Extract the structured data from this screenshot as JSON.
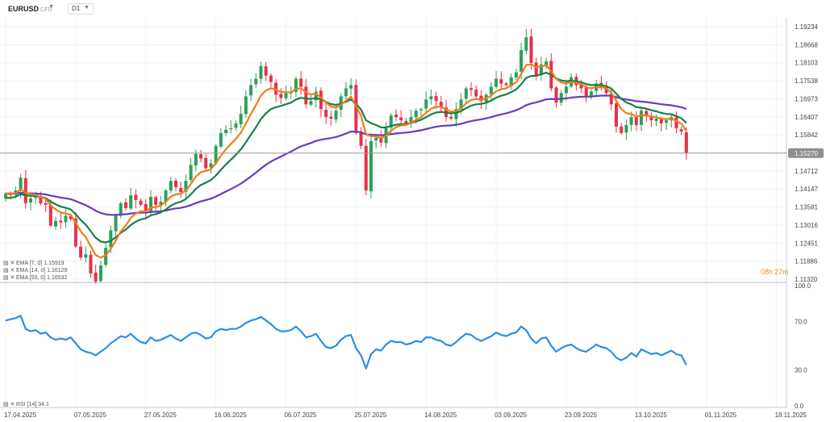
{
  "header": {
    "symbol": "EURUSD",
    "symbol_sub": "CFD",
    "timeframe": "D1"
  },
  "timer": {
    "hours": "08h",
    "minutes": "27m"
  },
  "legend": {
    "ema7": "EMA [7, 0] 1.15919",
    "ema14": "EMA [14, 0] 1.16129",
    "ema50": "EMA [50, 0] 1.16532",
    "rsi": "RSI [14] 34.1"
  },
  "colors": {
    "up": "#2ca05a",
    "down": "#e8304a",
    "ema7": "#f07d1a",
    "ema14": "#17814a",
    "ema50": "#6a3db8",
    "rsi": "#2b8fe8",
    "last_price_line": "#9a9a9a",
    "last_price_badge": "#8f8f8f"
  },
  "chart_data": [
    {
      "type": "candlestick",
      "title": "EURUSD D1",
      "last_price": 1.1527,
      "y_ticks": [
        "1.19234",
        "1.18668",
        "1.18103",
        "1.17538",
        "1.16973",
        "1.16407",
        "1.15842",
        "1.15270",
        "1.14712",
        "1.14147",
        "1.13581",
        "1.13016",
        "1.12451",
        "1.11886",
        "1.11320"
      ],
      "ylim": [
        1.1132,
        1.19234
      ],
      "x_ticks": [
        "17.04.2025",
        "07.05.2025",
        "27.05.2025",
        "16.06.2025",
        "06.07.2025",
        "25.07.2025",
        "14.08.2025",
        "03.09.2025",
        "23.09.2025",
        "13.10.2025",
        "01.11.2025",
        "18.11.2025"
      ],
      "x_tick_index": [
        0,
        14,
        28,
        42,
        56,
        70,
        84,
        98,
        112,
        126,
        140,
        154
      ],
      "close": [
        1.14,
        1.1395,
        1.141,
        1.145,
        1.137,
        1.1385,
        1.139,
        1.137,
        1.1365,
        1.13,
        1.1315,
        1.131,
        1.133,
        1.132,
        1.1235,
        1.12,
        1.121,
        1.115,
        1.1125,
        1.1175,
        1.123,
        1.1285,
        1.133,
        1.137,
        1.1355,
        1.1395,
        1.138,
        1.1365,
        1.1345,
        1.139,
        1.1365,
        1.1375,
        1.141,
        1.144,
        1.142,
        1.1405,
        1.144,
        1.149,
        1.1525,
        1.151,
        1.148,
        1.1495,
        1.155,
        1.159,
        1.16,
        1.1605,
        1.162,
        1.165,
        1.1705,
        1.174,
        1.176,
        1.18,
        1.177,
        1.175,
        1.171,
        1.17,
        1.1715,
        1.1718,
        1.176,
        1.1735,
        1.168,
        1.169,
        1.172,
        1.1665,
        1.164,
        1.1635,
        1.166,
        1.1705,
        1.173,
        1.174,
        1.159,
        1.155,
        1.141,
        1.1565,
        1.1575,
        1.156,
        1.1605,
        1.1645,
        1.164,
        1.163,
        1.162,
        1.164,
        1.166,
        1.1665,
        1.1695,
        1.1705,
        1.169,
        1.167,
        1.164,
        1.1635,
        1.1665,
        1.1695,
        1.173,
        1.1725,
        1.1705,
        1.169,
        1.171,
        1.1735,
        1.176,
        1.1745,
        1.174,
        1.1765,
        1.178,
        1.185,
        1.189,
        1.181,
        1.177,
        1.1805,
        1.1815,
        1.173,
        1.1685,
        1.1715,
        1.1735,
        1.1765,
        1.174,
        1.173,
        1.1705,
        1.172,
        1.1745,
        1.1735,
        1.1715,
        1.168,
        1.161,
        1.159,
        1.1615,
        1.164,
        1.1615,
        1.166,
        1.1645,
        1.163,
        1.1635,
        1.162,
        1.163,
        1.164,
        1.1605,
        1.1595,
        1.1527
      ],
      "series": [
        {
          "name": "EMA [7, 0]",
          "last": 1.15919
        },
        {
          "name": "EMA [14, 0]",
          "last": 1.16129
        },
        {
          "name": "EMA [50, 0]",
          "last": 1.16532
        }
      ]
    },
    {
      "type": "line",
      "title": "RSI [14]",
      "ylim": [
        0,
        100
      ],
      "y_ticks": [
        "100.0",
        "70.0",
        "30.0",
        "0.0"
      ],
      "series": [
        {
          "name": "RSI [14]",
          "last": 34.1,
          "values": [
            71,
            72,
            73,
            75,
            64,
            62,
            63,
            60,
            61,
            57,
            55,
            56,
            55,
            57,
            52,
            47,
            45,
            44,
            42,
            45,
            48,
            52,
            55,
            58,
            57,
            60,
            56,
            53,
            52,
            57,
            54,
            55,
            57,
            59,
            56,
            54,
            57,
            60,
            61,
            59,
            56,
            57,
            62,
            64,
            63,
            64,
            64,
            66,
            69,
            71,
            72,
            74,
            71,
            68,
            64,
            62,
            62,
            63,
            66,
            62,
            57,
            58,
            60,
            54,
            49,
            48,
            50,
            55,
            58,
            59,
            48,
            42,
            31,
            43,
            47,
            46,
            51,
            54,
            53,
            53,
            51,
            52,
            54,
            53,
            57,
            57,
            55,
            54,
            51,
            50,
            53,
            57,
            60,
            59,
            56,
            54,
            56,
            58,
            61,
            59,
            58,
            60,
            61,
            66,
            63,
            56,
            52,
            56,
            57,
            50,
            45,
            48,
            50,
            51,
            48,
            46,
            45,
            48,
            51,
            49,
            48,
            45,
            40,
            38,
            40,
            44,
            41,
            47,
            45,
            43,
            44,
            42,
            44,
            46,
            43,
            42,
            34
          ]
        }
      ]
    }
  ]
}
